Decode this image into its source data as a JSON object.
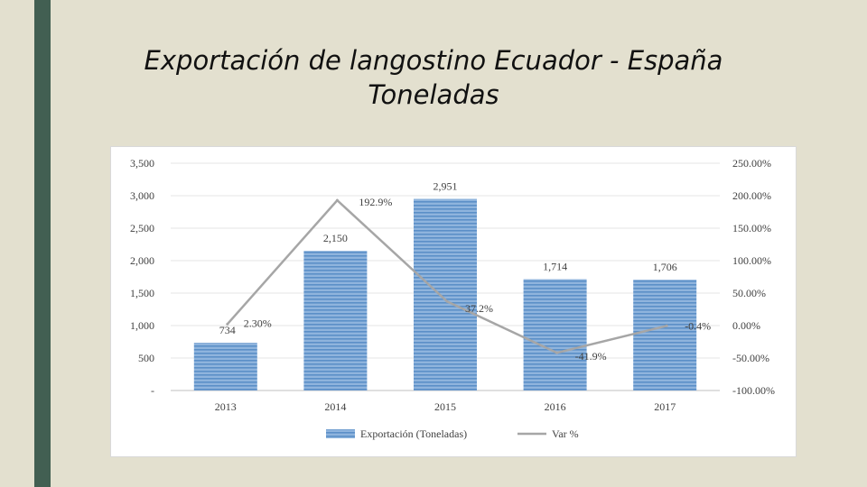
{
  "slide": {
    "title_line1": "Exportación de langostino Ecuador - España",
    "title_line2": "Toneladas"
  },
  "colors": {
    "sidebar": "#425f52",
    "background": "#e3e0cf",
    "bar": "#5b8fc7",
    "line": "#a6a6a6"
  },
  "chart_data": {
    "type": "bar+line",
    "categories": [
      "2013",
      "2014",
      "2015",
      "2016",
      "2017"
    ],
    "series": [
      {
        "name": "Exportación (Toneladas)",
        "type": "bar",
        "axis": "left",
        "values": [
          734,
          2150,
          2951,
          1714,
          1706
        ],
        "labels": [
          "734",
          "2,150",
          "2,951",
          "1,714",
          "1,706"
        ]
      },
      {
        "name": "Var %",
        "type": "line",
        "axis": "right",
        "values": [
          2.3,
          192.9,
          37.2,
          -41.9,
          -0.4
        ],
        "labels": [
          "2.30%",
          "192.9%",
          "37.2%",
          "-41.9%",
          "-0.4%"
        ]
      }
    ],
    "ylim_left": [
      0,
      3500
    ],
    "ylim_right": [
      -100,
      250
    ],
    "yticks_left": [
      "-",
      "500",
      "1,000",
      "1,500",
      "2,000",
      "2,500",
      "3,000",
      "3,500"
    ],
    "yticks_right": [
      "-100.00%",
      "-50.00%",
      "0.00%",
      "50.00%",
      "100.00%",
      "150.00%",
      "200.00%",
      "250.00%"
    ],
    "grid": true,
    "legend_position": "bottom"
  }
}
